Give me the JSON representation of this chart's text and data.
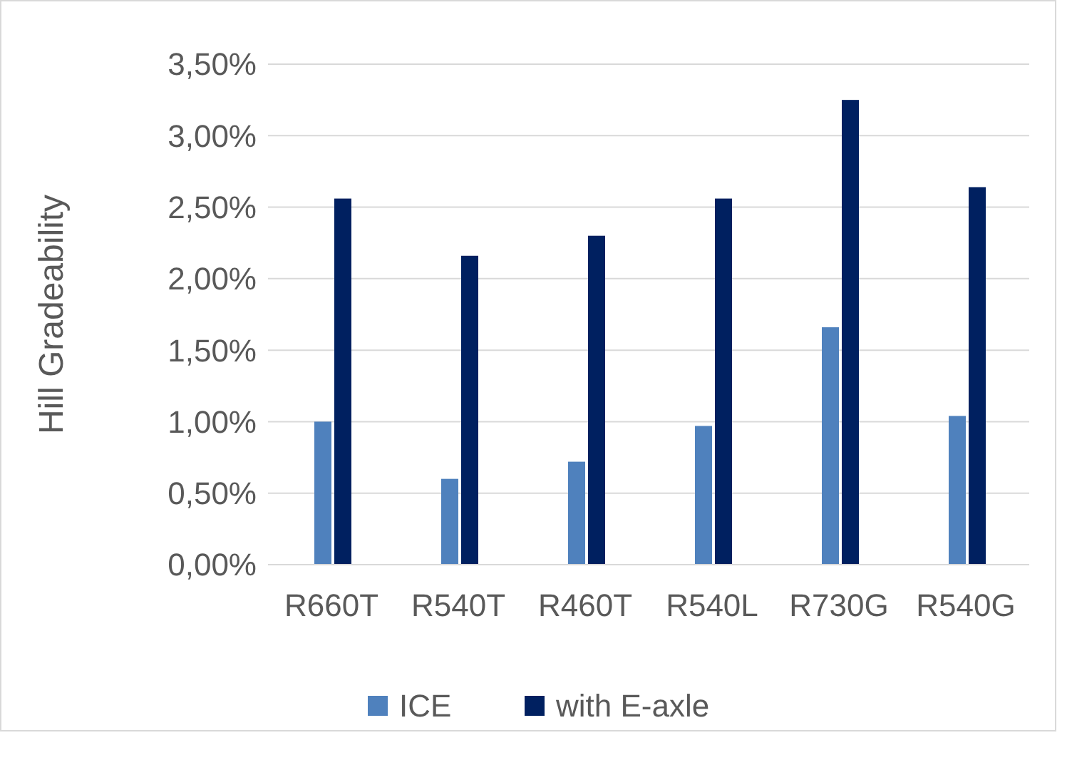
{
  "chart_data": {
    "type": "bar",
    "ylabel": "Hill Gradeability",
    "categories": [
      "R660T",
      "R540T",
      "R460T",
      "R540L",
      "R730G",
      "R540G"
    ],
    "series": [
      {
        "name": "ICE",
        "color": "#4f81bd",
        "values": [
          1.0,
          0.6,
          0.72,
          0.97,
          1.66,
          1.04
        ]
      },
      {
        "name": "with E-axle",
        "color": "#002060",
        "values": [
          2.56,
          2.16,
          2.3,
          2.56,
          3.25,
          2.64
        ]
      }
    ],
    "ylim": [
      0,
      3.5
    ],
    "yticks": [
      {
        "value": 0,
        "label": "0,00%"
      },
      {
        "value": 0.5,
        "label": "0,50%"
      },
      {
        "value": 1,
        "label": "1,00%"
      },
      {
        "value": 1.5,
        "label": "1,50%"
      },
      {
        "value": 2,
        "label": "2,00%"
      },
      {
        "value": 2.5,
        "label": "2,50%"
      },
      {
        "value": 3,
        "label": "3,00%"
      },
      {
        "value": 3.5,
        "label": "3,50%"
      }
    ],
    "grid": "y",
    "legend": "bottom"
  }
}
